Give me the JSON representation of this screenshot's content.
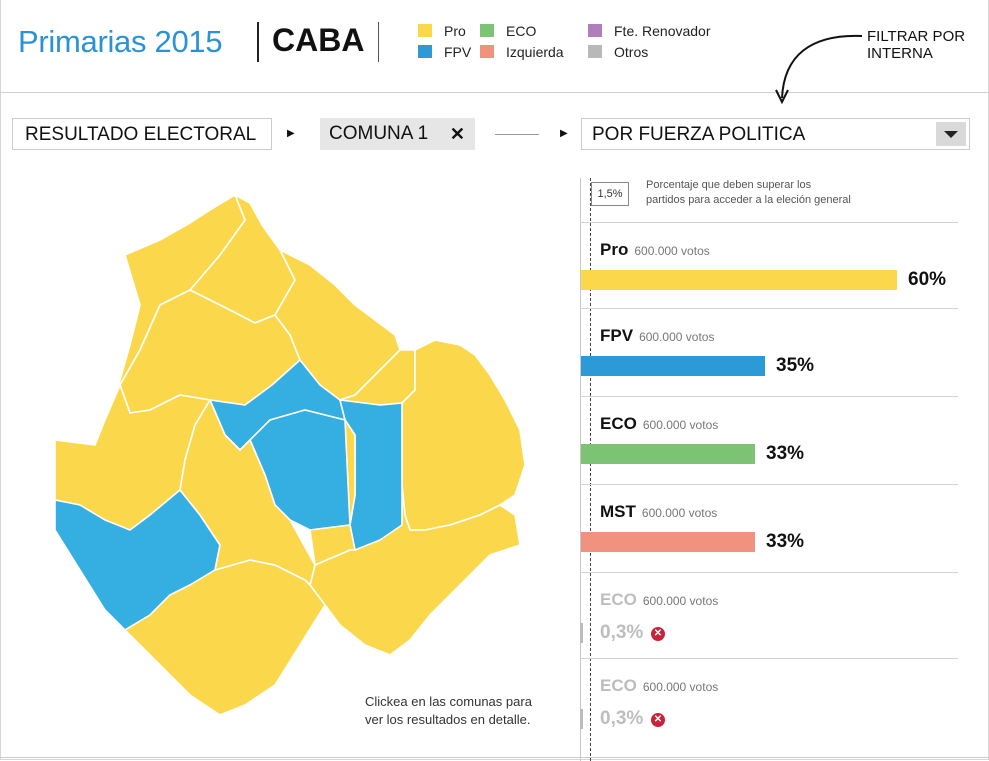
{
  "header": {
    "brand": "Primarias 2015",
    "region": "CABA",
    "filter_note_line1": "FILTRAR POR",
    "filter_note_line2": "INTERNA"
  },
  "legend": [
    {
      "label": "Pro",
      "color": "#fbd84b"
    },
    {
      "label": "FPV",
      "color": "#2b9ad6"
    },
    {
      "label": "ECO",
      "color": "#7cc373"
    },
    {
      "label": "Izquierda",
      "color": "#f1927e"
    },
    {
      "label": "Fte. Renovador",
      "color": "#b07fbb"
    },
    {
      "label": "Otros",
      "color": "#b8b8b8"
    }
  ],
  "selectors": {
    "resultado": "RESULTADO ELECTORAL",
    "comuna": "COMUNA 1",
    "fuerza": "POR FUERZA POLITICA"
  },
  "map": {
    "hint_line1": "Clickea en las comunas para",
    "hint_line2": "ver los resultados en detalle.",
    "colors": {
      "pro": "#fbd84b",
      "fpv": "#35aee2"
    }
  },
  "threshold": {
    "value": "1,5%",
    "text_line1": "Porcentaje que deben superar los",
    "text_line2": "partidos para acceder a la eleción general"
  },
  "results": [
    {
      "name": "Pro",
      "votes": "600.000 votos",
      "pct_label": "60%",
      "pct": 60,
      "color": "#fbd84b",
      "passed": true
    },
    {
      "name": "FPV",
      "votes": "600.000 votos",
      "pct_label": "35%",
      "pct": 35,
      "color": "#2b9ad6",
      "passed": true
    },
    {
      "name": "ECO",
      "votes": "600.000 votos",
      "pct_label": "33%",
      "pct": 33,
      "color": "#7cc373",
      "passed": true
    },
    {
      "name": "MST",
      "votes": "600.000 votos",
      "pct_label": "33%",
      "pct": 33,
      "color": "#f1927e",
      "passed": true
    },
    {
      "name": "ECO",
      "votes": "600.000 votos",
      "pct_label": "0,3%",
      "pct": 0.3,
      "color": "#bbbbbb",
      "passed": false
    },
    {
      "name": "ECO",
      "votes": "600.000 votos",
      "pct_label": "0,3%",
      "pct": 0.3,
      "color": "#bbbbbb",
      "passed": false
    }
  ]
}
